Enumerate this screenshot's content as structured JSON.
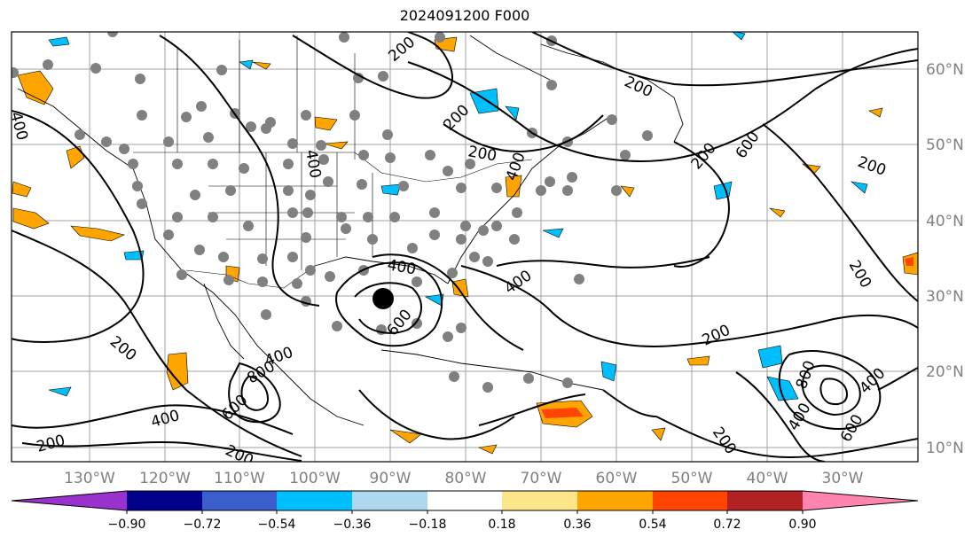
{
  "title": "2024091200 F000",
  "map": {
    "lon_labels": [
      "130°W",
      "120°W",
      "110°W",
      "100°W",
      "90°W",
      "80°W",
      "70°W",
      "60°W",
      "50°W",
      "40°W",
      "30°W"
    ],
    "lat_labels": [
      "60°N",
      "50°N",
      "40°N",
      "30°N",
      "20°N",
      "10°N"
    ],
    "gridline_color": "#a0a0a0",
    "contour_labels": [
      "200",
      "200",
      "200",
      "200",
      "200",
      "200",
      "200",
      "200",
      "200",
      "200",
      "200",
      "200",
      "400",
      "400",
      "400",
      "400",
      "400",
      "400",
      "400",
      "400",
      "400",
      "600",
      "600",
      "600",
      "600",
      "800",
      "800"
    ]
  },
  "colorbar": {
    "ticks": [
      "−0.90",
      "−0.72",
      "−0.54",
      "−0.36",
      "−0.18",
      "0.18",
      "0.36",
      "0.54",
      "0.72",
      "0.90"
    ],
    "colors": [
      "#9932cc",
      "#00008b",
      "#3a5fcd",
      "#00bfff",
      "#add8f0",
      "#ffffff",
      "#fde68a",
      "#ffa500",
      "#ff4500",
      "#b22222",
      "#ff85b0"
    ]
  }
}
